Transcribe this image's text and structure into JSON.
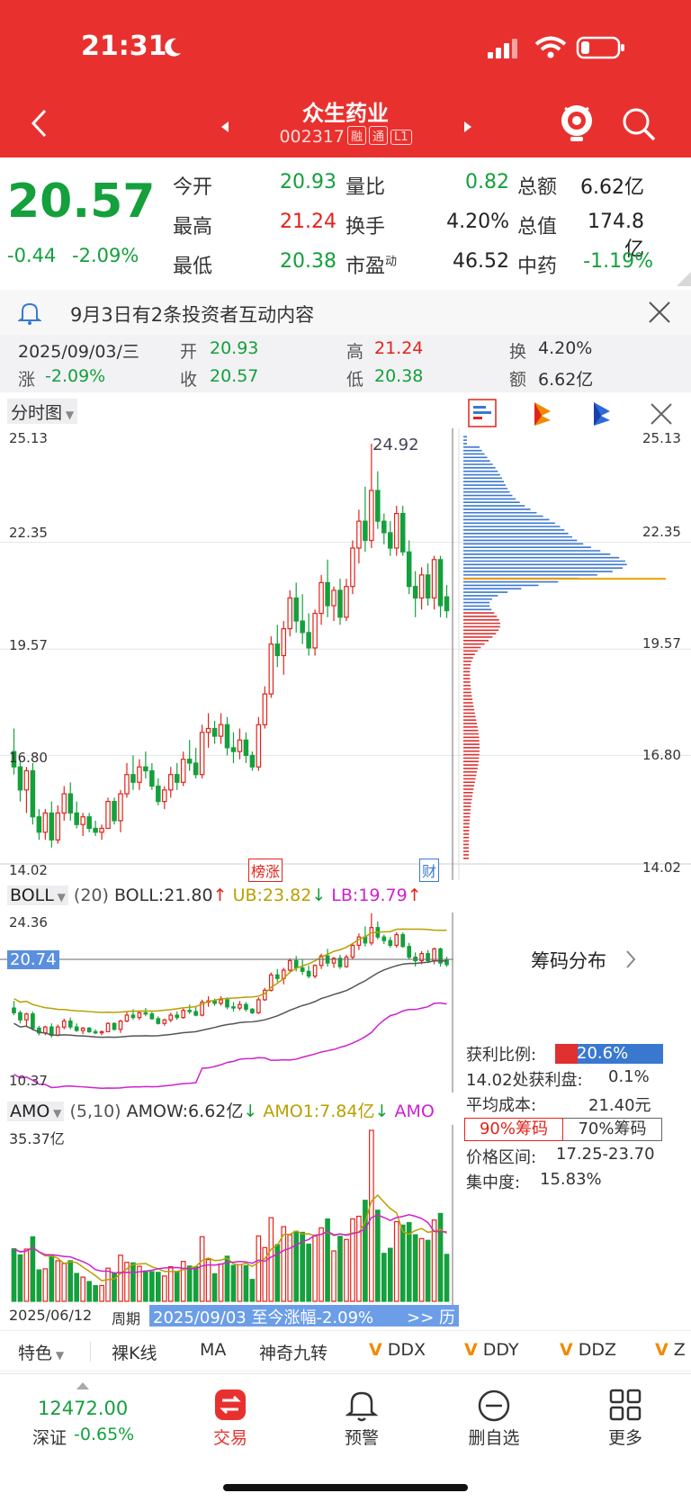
{
  "status": {
    "time": "21:31"
  },
  "header": {
    "title": "众生药业",
    "code": "002317",
    "tags": [
      "融",
      "通",
      "L1"
    ]
  },
  "quote": {
    "price": "20.57",
    "change": "-0.44",
    "pct": "-2.09%",
    "rows": [
      {
        "l1": "今开",
        "v1": "20.93",
        "l2": "量比",
        "v2": "0.82",
        "l3": "总额",
        "v3": "6.62亿"
      },
      {
        "l1": "最高",
        "v1": "21.24",
        "l2": "换手",
        "v2": "4.20%",
        "l3": "总值",
        "v3": "174.8亿"
      },
      {
        "l1": "最低",
        "v1": "20.38",
        "l2": "市盈",
        "l2sup": "动",
        "v2": "46.52",
        "l3": "中药",
        "v3": "-1.19%"
      }
    ]
  },
  "notice": {
    "text": "9月3日有2条投资者互动内容"
  },
  "detail": {
    "date": "2025/09/03/三",
    "open_l": "开",
    "open": "20.93",
    "high_l": "高",
    "high": "21.24",
    "turn_l": "换",
    "turn": "4.20%",
    "chg_l": "涨",
    "chg": "-2.09%",
    "close_l": "收",
    "close": "20.57",
    "low_l": "低",
    "low": "20.38",
    "amt_l": "额",
    "amt": "6.62亿"
  },
  "chart_toolbar": {
    "period": "分时图"
  },
  "kline": {
    "y_ticks": [
      "25.13",
      "22.35",
      "19.57",
      "16.80",
      "14.02"
    ],
    "peak": "24.92",
    "tag_rank": "榜涨",
    "tag_fin": "财"
  },
  "colors": {
    "up": "#e2231a",
    "down": "#14a03c",
    "header": "#e8312f",
    "profit": "#e03030",
    "loss": "#3a78d0"
  },
  "boll": {
    "name": "BOLL",
    "params": "(20)",
    "boll": "BOLL:21.80",
    "ub": "UB:23.82",
    "lb": "LB:19.79",
    "top": "24.36",
    "mid": "20.74",
    "bottom": "10.37"
  },
  "amo": {
    "name": "AMO",
    "params": "(5,10)",
    "amow": "AMOW:6.62亿",
    "amo1": "AMO1:7.84亿",
    "amo2": "AMO",
    "top": "35.37亿",
    "start_date": "2025/06/12",
    "period_label": "周期",
    "range_text": "2025/09/03 至今涨幅-2.09%",
    "range_link": ">> 历"
  },
  "chip": {
    "title": "筹码分布",
    "profit_l": "获利比例:",
    "profit": "20.6%",
    "at_l": "14.02处获利盘:",
    "at": "0.1%",
    "avg_l": "平均成本:",
    "avg": "21.40元",
    "tab90": "90%筹码",
    "tab70": "70%筹码",
    "range_l": "价格区间:",
    "range": "17.25-23.70",
    "conc_l": "集中度:",
    "conc": "15.83%"
  },
  "indicator_tabs": [
    "特色",
    "裸K线",
    "MA",
    "神奇九转",
    "DDX",
    "DDY",
    "DDZ",
    "Z"
  ],
  "bottom_nav": {
    "index_value": "12472.00",
    "index_name": "深证",
    "index_pct": "-0.65%",
    "items": [
      "交易",
      "预警",
      "删自选",
      "更多"
    ]
  },
  "chart_data": {
    "type": "candlestick",
    "y_range": [
      14.02,
      25.13
    ],
    "candles": [
      [
        16.9,
        17.5,
        16.3,
        16.5
      ],
      [
        16.5,
        16.7,
        15.6,
        15.9
      ],
      [
        15.9,
        16.5,
        15.3,
        16.4
      ],
      [
        16.4,
        16.6,
        15.0,
        15.2
      ],
      [
        15.2,
        15.4,
        14.6,
        14.8
      ],
      [
        14.8,
        15.4,
        14.6,
        15.3
      ],
      [
        15.3,
        15.6,
        14.4,
        14.6
      ],
      [
        14.6,
        15.5,
        14.5,
        15.3
      ],
      [
        15.3,
        16.0,
        15.1,
        15.8
      ],
      [
        15.8,
        16.1,
        15.1,
        15.3
      ],
      [
        15.3,
        15.6,
        14.9,
        15.0
      ],
      [
        15.0,
        15.3,
        14.7,
        15.2
      ],
      [
        15.2,
        15.3,
        14.8,
        14.9
      ],
      [
        14.9,
        15.1,
        14.7,
        14.8
      ],
      [
        14.8,
        15.0,
        14.6,
        14.9
      ],
      [
        14.9,
        15.7,
        14.9,
        15.6
      ],
      [
        15.6,
        15.7,
        15.0,
        15.1
      ],
      [
        15.1,
        15.9,
        14.8,
        15.8
      ],
      [
        15.8,
        16.6,
        15.7,
        16.3
      ],
      [
        16.3,
        16.8,
        15.9,
        16.1
      ],
      [
        16.1,
        16.7,
        15.9,
        16.5
      ],
      [
        16.5,
        16.9,
        16.2,
        16.4
      ],
      [
        16.4,
        16.6,
        15.9,
        16.0
      ],
      [
        16.0,
        16.2,
        15.5,
        15.6
      ],
      [
        15.6,
        16.0,
        15.4,
        15.9
      ],
      [
        15.9,
        16.5,
        15.7,
        16.3
      ],
      [
        16.3,
        16.6,
        15.9,
        16.1
      ],
      [
        16.1,
        16.9,
        16.0,
        16.7
      ],
      [
        16.7,
        17.2,
        16.4,
        16.6
      ],
      [
        16.6,
        17.0,
        16.2,
        16.3
      ],
      [
        16.3,
        17.6,
        16.2,
        17.4
      ],
      [
        17.4,
        17.9,
        17.0,
        17.5
      ],
      [
        17.5,
        17.7,
        17.1,
        17.3
      ],
      [
        17.3,
        17.9,
        17.1,
        17.6
      ],
      [
        17.6,
        17.8,
        16.8,
        17.0
      ],
      [
        17.0,
        17.4,
        16.6,
        16.9
      ],
      [
        16.9,
        17.5,
        16.7,
        17.2
      ],
      [
        17.2,
        17.4,
        16.6,
        16.8
      ],
      [
        16.8,
        16.9,
        16.4,
        16.5
      ],
      [
        16.5,
        17.8,
        16.4,
        17.6
      ],
      [
        17.6,
        18.6,
        17.5,
        18.4
      ],
      [
        18.4,
        19.9,
        18.3,
        19.7
      ],
      [
        19.7,
        20.2,
        19.1,
        19.4
      ],
      [
        19.4,
        20.3,
        18.9,
        20.1
      ],
      [
        20.1,
        21.1,
        19.9,
        20.9
      ],
      [
        20.9,
        21.3,
        20.0,
        20.3
      ],
      [
        20.3,
        21.0,
        19.7,
        20.0
      ],
      [
        20.0,
        20.5,
        19.4,
        19.6
      ],
      [
        19.6,
        20.6,
        19.4,
        20.5
      ],
      [
        20.5,
        21.5,
        20.2,
        21.3
      ],
      [
        21.3,
        21.9,
        20.4,
        20.7
      ],
      [
        20.7,
        21.2,
        20.3,
        21.1
      ],
      [
        21.1,
        21.4,
        20.2,
        20.4
      ],
      [
        20.4,
        21.4,
        20.3,
        21.2
      ],
      [
        21.2,
        22.4,
        21.0,
        22.2
      ],
      [
        22.2,
        23.2,
        21.8,
        22.9
      ],
      [
        22.9,
        23.8,
        22.1,
        22.4
      ],
      [
        22.4,
        24.92,
        22.2,
        23.7
      ],
      [
        23.7,
        24.2,
        22.7,
        22.9
      ],
      [
        22.9,
        23.1,
        22.3,
        22.6
      ],
      [
        22.6,
        22.9,
        22.0,
        22.2
      ],
      [
        22.2,
        23.3,
        22.0,
        23.1
      ],
      [
        23.1,
        23.3,
        22.0,
        22.1
      ],
      [
        22.1,
        22.4,
        21.0,
        21.2
      ],
      [
        21.2,
        21.6,
        20.4,
        20.9
      ],
      [
        20.9,
        21.7,
        20.6,
        21.5
      ],
      [
        21.5,
        21.8,
        20.7,
        20.9
      ],
      [
        20.9,
        22.0,
        20.6,
        21.9
      ],
      [
        21.9,
        22.0,
        20.4,
        20.7
      ],
      [
        20.93,
        21.24,
        20.38,
        20.57
      ]
    ]
  }
}
